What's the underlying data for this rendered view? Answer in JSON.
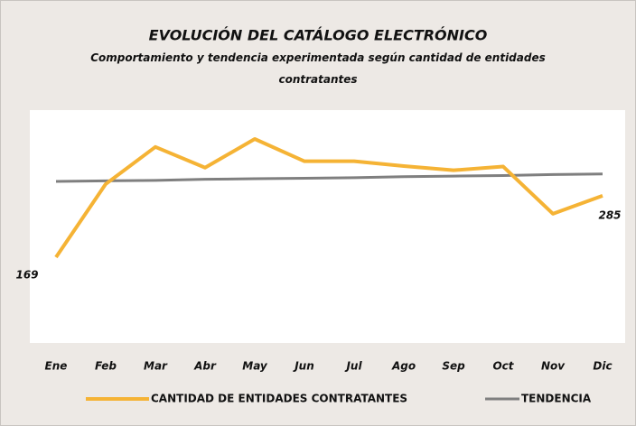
{
  "chart_data": {
    "type": "line",
    "title": "EVOLUCIÓN DEL CATÁLOGO ELECTRÓNICO",
    "subtitle": "Comportamiento y tendencia experimentada según cantidad de entidades contratantes",
    "categories": [
      "Ene",
      "Feb",
      "Mar",
      "Abr",
      "May",
      "Jun",
      "Jul",
      "Ago",
      "Sep",
      "Oct",
      "Nov",
      "Dic"
    ],
    "series": [
      {
        "name": "CANTIDAD DE ENTIDADES CONTRATANTES",
        "color": "#f5b335",
        "values": [
          169,
          307,
          377,
          338,
          392,
          350,
          350,
          341,
          333,
          340,
          251,
          285
        ]
      },
      {
        "name": "TENDENCIA",
        "color": "#7f7f7f",
        "values": [
          312,
          313,
          314,
          316,
          317,
          318,
          319,
          321,
          322,
          323,
          325,
          326
        ]
      }
    ],
    "legend": "bottom"
  }
}
